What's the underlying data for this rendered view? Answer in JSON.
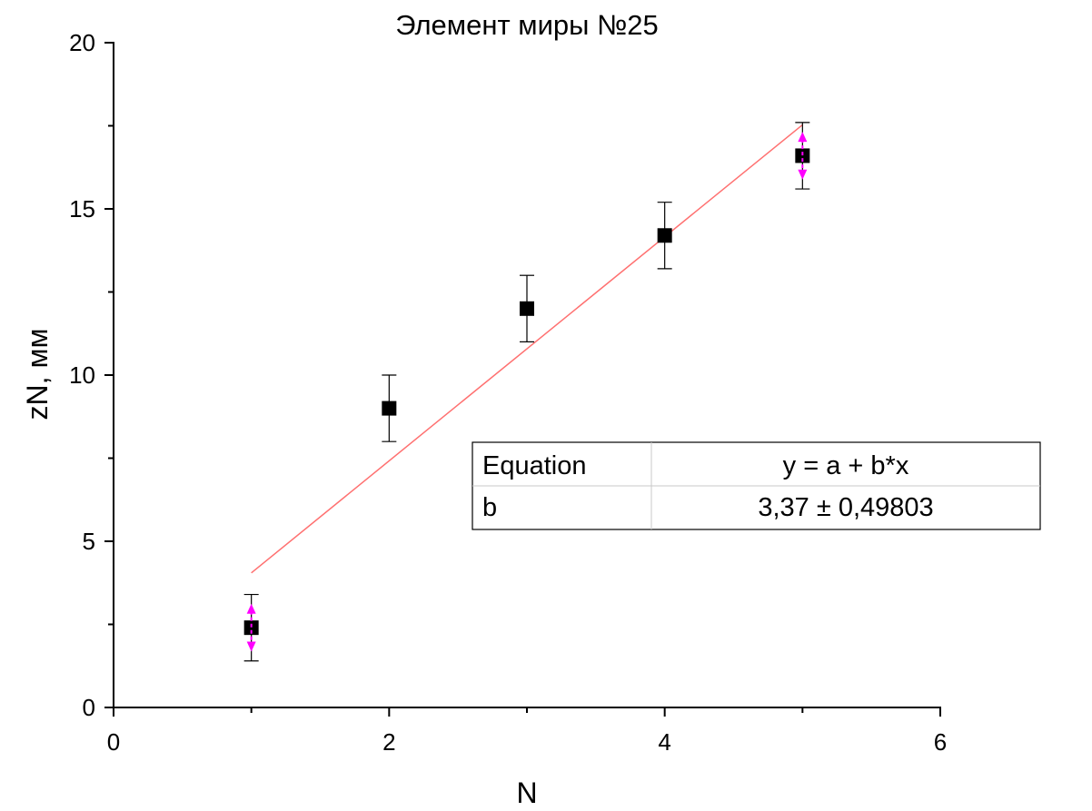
{
  "chart_data": {
    "type": "scatter",
    "title": "Элемент миры №25",
    "xlabel": "N",
    "ylabel": "zN, мм",
    "xlim": [
      0,
      6
    ],
    "ylim": [
      0,
      20
    ],
    "x_ticks": [
      "0",
      "2",
      "4",
      "6"
    ],
    "y_ticks": [
      "0",
      "5",
      "10",
      "15",
      "20"
    ],
    "points": [
      {
        "x": 1,
        "y": 2.4,
        "err": 1.0
      },
      {
        "x": 2,
        "y": 9.0,
        "err": 1.0
      },
      {
        "x": 3,
        "y": 12.0,
        "err": 1.0
      },
      {
        "x": 4,
        "y": 14.2,
        "err": 1.0
      },
      {
        "x": 5,
        "y": 16.6,
        "err": 1.0
      }
    ],
    "fit_line": {
      "x": [
        1,
        5
      ],
      "y": [
        4.05,
        17.53
      ],
      "color": "#ff7070"
    },
    "highlight_points": [
      0,
      4
    ],
    "highlight_color": "#ff00ff",
    "marker_color": "#000000",
    "grid": false,
    "fit_table": {
      "rows": [
        {
          "label": "Equation",
          "value": "y = a + b*x"
        },
        {
          "label": "b",
          "value": "3,37 ± 0,49803"
        }
      ]
    }
  }
}
